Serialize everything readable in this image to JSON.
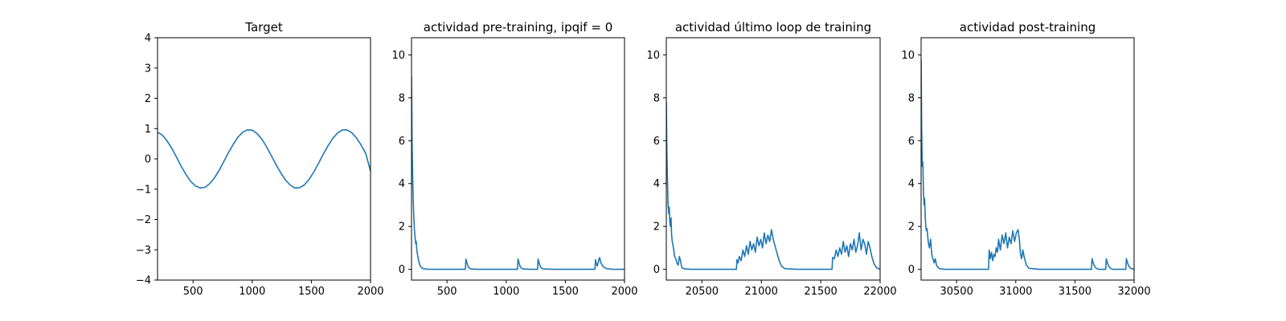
{
  "figure": {
    "line_color": "#1f77b4",
    "background": "#ffffff"
  },
  "chart_data": [
    {
      "type": "line",
      "title": "Target",
      "xlim": [
        200,
        2000
      ],
      "ylim": [
        -4,
        4
      ],
      "xticks": [
        500,
        1000,
        1500,
        2000
      ],
      "yticks": [
        -4,
        -3,
        -2,
        -1,
        0,
        1,
        2,
        3,
        4
      ],
      "series": [
        {
          "x": [
            200,
            240,
            280,
            320,
            360,
            400,
            440,
            480,
            520,
            560,
            600,
            640,
            680,
            720,
            760,
            800,
            840,
            880,
            920,
            960,
            1000,
            1040,
            1080,
            1120,
            1160,
            1200,
            1240,
            1280,
            1320,
            1360,
            1400,
            1440,
            1480,
            1520,
            1560,
            1600,
            1640,
            1680,
            1720,
            1760,
            1800,
            1840,
            1880,
            1920,
            1960,
            2000
          ],
          "y": [
            0.88,
            0.79,
            0.6,
            0.35,
            0.06,
            -0.24,
            -0.51,
            -0.74,
            -0.89,
            -0.96,
            -0.94,
            -0.82,
            -0.63,
            -0.38,
            -0.09,
            0.21,
            0.48,
            0.72,
            0.88,
            0.96,
            0.95,
            0.84,
            0.66,
            0.41,
            0.12,
            -0.18,
            -0.45,
            -0.69,
            -0.86,
            -0.96,
            -0.95,
            -0.86,
            -0.68,
            -0.44,
            -0.15,
            0.15,
            0.43,
            0.67,
            0.85,
            0.95,
            0.96,
            0.87,
            0.7,
            0.46,
            0.18,
            -0.41
          ]
        }
      ]
    },
    {
      "type": "line",
      "title": "actividad pre-training, ipqif = 0",
      "xlim": [
        200,
        2000
      ],
      "ylim": [
        -0.5,
        10.8
      ],
      "xticks": [
        500,
        1000,
        1500,
        2000
      ],
      "yticks": [
        0,
        2,
        4,
        6,
        8,
        10
      ],
      "series": [
        {
          "x": [
            200,
            205,
            210,
            215,
            220,
            225,
            230,
            235,
            240,
            245,
            250,
            260,
            270,
            285,
            300,
            330,
            400,
            500,
            600,
            655,
            660,
            670,
            680,
            700,
            750,
            800,
            900,
            1000,
            1095,
            1100,
            1110,
            1120,
            1140,
            1200,
            1265,
            1270,
            1280,
            1290,
            1310,
            1400,
            1500,
            1600,
            1700,
            1750,
            1755,
            1762,
            1770,
            1785,
            1790,
            1800,
            1820,
            1850,
            1900,
            2000
          ],
          "y": [
            9.0,
            5.8,
            4.2,
            3.1,
            2.4,
            1.8,
            1.5,
            1.2,
            1.3,
            0.9,
            0.7,
            0.4,
            0.2,
            0.08,
            0.03,
            0.01,
            0.0,
            0.0,
            0.0,
            0.0,
            0.48,
            0.28,
            0.1,
            0.02,
            0.0,
            0.0,
            0.0,
            0.0,
            0.0,
            0.48,
            0.28,
            0.1,
            0.02,
            0.0,
            0.0,
            0.48,
            0.28,
            0.1,
            0.02,
            0.0,
            0.0,
            0.0,
            0.0,
            0.0,
            0.45,
            0.25,
            0.15,
            0.48,
            0.55,
            0.3,
            0.12,
            0.03,
            0.0,
            0.0
          ]
        }
      ]
    },
    {
      "type": "line",
      "title": "actividad último loop de training",
      "xlim": [
        20200,
        22000
      ],
      "ylim": [
        -0.5,
        10.8
      ],
      "xticks": [
        20500,
        21000,
        21500,
        22000
      ],
      "yticks": [
        0,
        2,
        4,
        6,
        8,
        10
      ],
      "series": [
        {
          "x": [
            20200,
            20205,
            20210,
            20215,
            20220,
            20225,
            20230,
            20235,
            20240,
            20245,
            20250,
            20260,
            20270,
            20280,
            20290,
            20300,
            20310,
            20320,
            20330,
            20340,
            20360,
            20400,
            20500,
            20600,
            20700,
            20790,
            20795,
            20805,
            20815,
            20830,
            20845,
            20860,
            20875,
            20890,
            20905,
            20920,
            20935,
            20950,
            20965,
            20980,
            20995,
            21010,
            21025,
            21040,
            21055,
            21070,
            21085,
            21100,
            21115,
            21130,
            21150,
            21170,
            21200,
            21300,
            21400,
            21500,
            21595,
            21600,
            21615,
            21630,
            21645,
            21660,
            21675,
            21690,
            21705,
            21720,
            21735,
            21750,
            21765,
            21780,
            21795,
            21810,
            21825,
            21840,
            21855,
            21870,
            21885,
            21900,
            21915,
            21930,
            21950,
            21970,
            22000
          ],
          "y": [
            7.8,
            5.5,
            4.0,
            3.0,
            2.6,
            2.9,
            2.2,
            2.0,
            2.4,
            1.6,
            1.3,
            1.0,
            0.6,
            0.5,
            0.3,
            0.2,
            0.6,
            0.4,
            0.1,
            0.05,
            0.02,
            0.0,
            0.0,
            0.0,
            0.0,
            0.0,
            0.45,
            0.3,
            0.6,
            0.4,
            0.9,
            0.6,
            1.1,
            0.7,
            1.3,
            0.9,
            1.2,
            0.8,
            1.5,
            1.1,
            1.4,
            1.0,
            1.7,
            1.2,
            1.6,
            1.3,
            1.85,
            1.4,
            1.1,
            0.8,
            0.4,
            0.15,
            0.03,
            0.0,
            0.0,
            0.0,
            0.0,
            0.55,
            0.5,
            0.9,
            0.6,
            1.0,
            0.7,
            1.3,
            0.8,
            1.1,
            0.6,
            1.2,
            0.9,
            1.4,
            0.8,
            1.1,
            1.7,
            0.9,
            1.4,
            1.2,
            0.7,
            1.3,
            1.0,
            0.6,
            0.25,
            0.08,
            0.0
          ]
        }
      ]
    },
    {
      "type": "line",
      "title": "actividad post-training",
      "xlim": [
        30200,
        32000
      ],
      "ylim": [
        -0.5,
        10.8
      ],
      "xticks": [
        30500,
        31000,
        31500,
        32000
      ],
      "yticks": [
        0,
        2,
        4,
        6,
        8,
        10
      ],
      "series": [
        {
          "x": [
            30200,
            30205,
            30210,
            30215,
            30220,
            30225,
            30230,
            30235,
            30240,
            30245,
            30250,
            30260,
            30270,
            30280,
            30290,
            30300,
            30310,
            30320,
            30330,
            30345,
            30360,
            30400,
            30500,
            30600,
            30700,
            30770,
            30775,
            30785,
            30795,
            30805,
            30815,
            30825,
            30835,
            30845,
            30855,
            30870,
            30885,
            30900,
            30915,
            30930,
            30945,
            30960,
            30975,
            30990,
            31005,
            31020,
            31030,
            31040,
            31050,
            31060,
            31070,
            31090,
            31110,
            31200,
            31300,
            31400,
            31500,
            31640,
            31645,
            31655,
            31665,
            31680,
            31700,
            31760,
            31765,
            31775,
            31785,
            31800,
            31820,
            31900,
            31930,
            31935,
            31945,
            31955,
            31970,
            32000
          ],
          "y": [
            9.8,
            6.5,
            4.8,
            5.0,
            3.6,
            3.0,
            3.3,
            2.4,
            2.0,
            1.8,
            1.9,
            1.3,
            1.0,
            1.4,
            0.7,
            0.5,
            0.3,
            0.5,
            0.2,
            0.08,
            0.03,
            0.0,
            0.0,
            0.0,
            0.0,
            0.0,
            0.9,
            0.5,
            0.8,
            0.4,
            0.7,
            0.6,
            1.0,
            0.8,
            1.4,
            0.9,
            1.6,
            1.2,
            1.7,
            1.0,
            1.5,
            1.2,
            1.8,
            1.3,
            1.7,
            1.85,
            1.4,
            0.7,
            0.5,
            0.9,
            0.6,
            0.2,
            0.05,
            0.0,
            0.0,
            0.0,
            0.0,
            0.0,
            0.5,
            0.3,
            0.15,
            0.05,
            0.0,
            0.0,
            0.5,
            0.3,
            0.15,
            0.05,
            0.0,
            0.0,
            0.0,
            0.5,
            0.3,
            0.15,
            0.05,
            0.0
          ]
        }
      ]
    }
  ]
}
